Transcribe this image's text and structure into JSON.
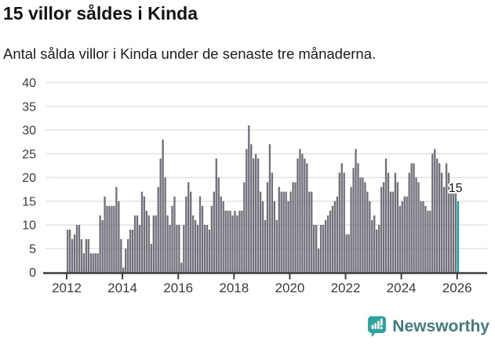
{
  "chart_data": {
    "type": "bar",
    "title": "15 villor såldes i Kinda",
    "subtitle": "Antal sålda villor i Kinda under de senaste tre månaderna.",
    "frequency": "monthly",
    "x_start_year": 2012,
    "x_start_month": 1,
    "values": [
      9,
      9,
      7,
      8,
      10,
      10,
      7,
      4,
      7,
      7,
      4,
      4,
      4,
      4,
      12,
      11,
      16,
      14,
      14,
      14,
      14,
      18,
      15,
      7,
      1,
      5,
      7,
      9,
      9,
      12,
      12,
      10,
      17,
      16,
      13,
      12,
      6,
      12,
      12,
      18,
      24,
      28,
      20,
      12,
      10,
      14,
      16,
      10,
      10,
      2,
      10,
      16,
      19,
      17,
      12,
      11,
      10,
      16,
      14,
      10,
      10,
      9,
      14,
      17,
      24,
      20,
      16,
      15,
      13,
      13,
      13,
      12,
      13,
      12,
      13,
      13,
      19,
      26,
      31,
      27,
      24,
      25,
      24,
      17,
      15,
      11,
      19,
      27,
      21,
      15,
      11,
      18,
      17,
      17,
      17,
      15,
      17,
      19,
      19,
      24,
      26,
      25,
      24,
      23,
      17,
      17,
      10,
      10,
      5,
      10,
      10,
      11,
      12,
      13,
      14,
      15,
      16,
      21,
      23,
      21,
      8,
      8,
      18,
      22,
      26,
      23,
      20,
      20,
      19,
      17,
      15,
      11,
      12,
      9,
      10,
      18,
      19,
      24,
      21,
      17,
      17,
      21,
      19,
      14,
      15,
      16,
      16,
      21,
      23,
      23,
      20,
      19,
      15,
      15,
      14,
      13,
      13,
      25,
      26,
      24,
      23,
      21,
      18,
      23,
      21,
      17,
      17,
      17,
      15
    ],
    "highlight_last_bar": true,
    "annotation": {
      "text": "15"
    },
    "y_ticks": [
      0,
      5,
      10,
      15,
      20,
      25,
      30,
      35,
      40
    ],
    "x_ticks": [
      2012,
      2014,
      2016,
      2018,
      2020,
      2022,
      2024,
      2026
    ],
    "ylim": [
      0,
      40
    ],
    "grid": true,
    "legend": "none",
    "colors": {
      "bar": "#74717C",
      "highlight": "#0BA3A3",
      "grid": "#E3E3E3",
      "axis": "#3F3F3F",
      "tick_label": "#3A3A3A",
      "annotation_text": "#1A1A1A"
    }
  },
  "branding": {
    "name": "Newsworthy",
    "colors": {
      "icon": "#2FA39E",
      "text": "#447B81"
    }
  }
}
